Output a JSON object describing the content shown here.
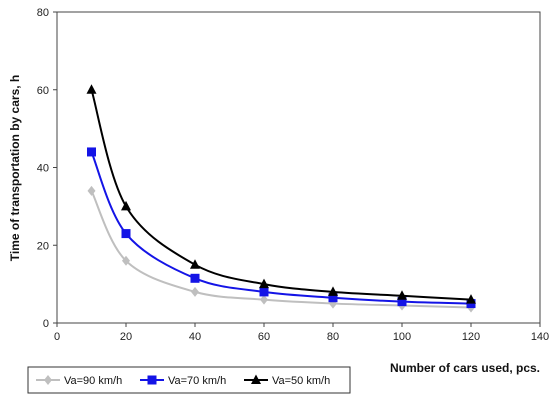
{
  "chart_data": {
    "type": "line",
    "xlabel": "Number of cars used, pcs.",
    "ylabel": "Time of transportation by cars, h",
    "xlim": [
      0,
      140
    ],
    "ylim": [
      0,
      80
    ],
    "xticks": [
      0,
      20,
      40,
      60,
      80,
      100,
      120,
      140
    ],
    "yticks": [
      0,
      20,
      40,
      60,
      80
    ],
    "grid": false,
    "legend_position": "bottom-left",
    "series": [
      {
        "name": "Va=90 km/h",
        "color": "#bfbfbf",
        "marker": "diamond",
        "x": [
          10,
          20,
          40,
          60,
          80,
          100,
          120
        ],
        "y": [
          34,
          16,
          8,
          6,
          5,
          4.5,
          4
        ]
      },
      {
        "name": "Va=70 km/h",
        "color": "#1414e6",
        "marker": "square",
        "x": [
          10,
          20,
          40,
          60,
          80,
          100,
          120
        ],
        "y": [
          44,
          23,
          11.5,
          8,
          6.5,
          5.5,
          5
        ]
      },
      {
        "name": "Va=50 km/h",
        "color": "#000000",
        "marker": "triangle",
        "x": [
          10,
          20,
          40,
          60,
          80,
          100,
          120
        ],
        "y": [
          60,
          30,
          15,
          10,
          8,
          7,
          6
        ]
      }
    ]
  }
}
